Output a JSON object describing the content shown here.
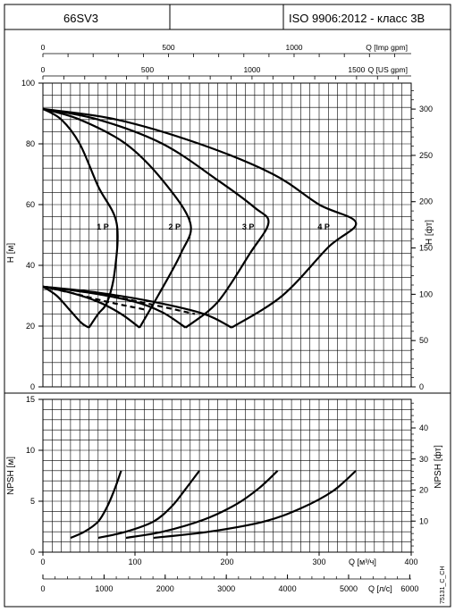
{
  "header": {
    "model": "66SV3",
    "blank": "",
    "standard": "ISO 9906:2012 - класс 3B"
  },
  "footer_code": "75131_C_CH",
  "chart_data": [
    {
      "type": "line",
      "panel": "head",
      "ylabel_left": "H [м]",
      "ylabel_right": "H [фт]",
      "ylim": [
        0,
        100
      ],
      "yticks_left": [
        "0",
        "20",
        "40",
        "60",
        "80",
        "100"
      ],
      "yticks_right": [
        "0",
        "50",
        "100",
        "150",
        "200",
        "250",
        "300"
      ],
      "top_axes": [
        {
          "label": "Q [Imp gpm]",
          "ticks": [
            "0",
            "500",
            "1000"
          ]
        },
        {
          "label": "Q [US gpm]",
          "ticks": [
            "0",
            "500",
            "1000",
            "1500"
          ]
        }
      ],
      "stage_labels": [
        "1 P",
        "2 P",
        "3 P",
        "4 P"
      ],
      "series": [
        {
          "name": "1 P",
          "style": "solid",
          "points": [
            [
              0,
              91.5
            ],
            [
              20,
              88
            ],
            [
              40,
              80
            ],
            [
              60,
              66
            ],
            [
              80,
              54
            ],
            [
              78,
              38
            ],
            [
              70,
              28
            ],
            [
              60,
              24
            ],
            [
              50,
              19.5
            ]
          ]
        },
        {
          "name": "2 P",
          "style": "solid",
          "points": [
            [
              0,
              91.5
            ],
            [
              40,
              88
            ],
            [
              90,
              80
            ],
            [
              130,
              68
            ],
            [
              160,
              54
            ],
            [
              150,
              44
            ],
            [
              125,
              30
            ],
            [
              105,
              19.5
            ]
          ]
        },
        {
          "name": "3 P",
          "style": "solid",
          "points": [
            [
              0,
              91.5
            ],
            [
              60,
              88
            ],
            [
              130,
              80
            ],
            [
              190,
              68
            ],
            [
              230,
              59
            ],
            [
              245,
              54
            ],
            [
              225,
              44
            ],
            [
              190,
              28
            ],
            [
              155,
              19.5
            ]
          ]
        },
        {
          "name": "4 P",
          "style": "solid",
          "points": [
            [
              0,
              91.5
            ],
            [
              80,
              88
            ],
            [
              170,
              80
            ],
            [
              250,
              70
            ],
            [
              300,
              60
            ],
            [
              340,
              54
            ],
            [
              310,
              46
            ],
            [
              260,
              30
            ],
            [
              205,
              19.5
            ]
          ]
        },
        {
          "name": "",
          "style": "solid",
          "points": [
            [
              0,
              33
            ],
            [
              15,
              30
            ],
            [
              30,
              25
            ],
            [
              42,
              21
            ],
            [
              50,
              19.5
            ]
          ]
        },
        {
          "name": "",
          "style": "solid",
          "points": [
            [
              0,
              33
            ],
            [
              30,
              31
            ],
            [
              60,
              28
            ],
            [
              85,
              24
            ],
            [
              105,
              19.5
            ]
          ]
        },
        {
          "name": "",
          "style": "solid",
          "points": [
            [
              0,
              33
            ],
            [
              50,
              31
            ],
            [
              100,
              28
            ],
            [
              130,
              24.5
            ],
            [
              155,
              19.5
            ]
          ]
        },
        {
          "name": "",
          "style": "solid",
          "points": [
            [
              0,
              33
            ],
            [
              60,
              31
            ],
            [
              120,
              28
            ],
            [
              175,
              24
            ],
            [
              205,
              19.5
            ]
          ]
        },
        {
          "name": "",
          "style": "dashed",
          "points": [
            [
              0,
              33
            ],
            [
              40,
              31.5
            ],
            [
              80,
              29.5
            ],
            [
              120,
              27
            ],
            [
              165,
              24
            ]
          ]
        },
        {
          "name": "",
          "style": "dashed",
          "points": [
            [
              0,
              33
            ],
            [
              30,
              31
            ],
            [
              70,
              28
            ],
            [
              110,
              25.5
            ]
          ]
        }
      ]
    },
    {
      "type": "line",
      "panel": "npsh",
      "ylabel_left": "NPSH [м]",
      "ylabel_right": "NPSH [фт]",
      "ylim": [
        0,
        15
      ],
      "yticks_left": [
        "0",
        "5",
        "10",
        "15"
      ],
      "yticks_right": [
        "10",
        "20",
        "30",
        "40"
      ],
      "bottom_axes": [
        {
          "label": "Q [м³/ч]",
          "ticks": [
            "0",
            "100",
            "200",
            "300",
            "400"
          ]
        },
        {
          "label": "Q [л/с]",
          "ticks": [
            "0",
            "1000",
            "2000",
            "3000",
            "4000",
            "5000",
            "6000"
          ]
        }
      ],
      "series": [
        {
          "name": "1 P",
          "points": [
            [
              30,
              1.4
            ],
            [
              45,
              2.0
            ],
            [
              60,
              3.0
            ],
            [
              70,
              4.5
            ],
            [
              78,
              6.2
            ],
            [
              85,
              8.0
            ]
          ]
        },
        {
          "name": "2 P",
          "points": [
            [
              60,
              1.4
            ],
            [
              90,
              2.0
            ],
            [
              120,
              3.0
            ],
            [
              140,
              4.5
            ],
            [
              155,
              6.2
            ],
            [
              170,
              8.0
            ]
          ]
        },
        {
          "name": "3 P",
          "points": [
            [
              90,
              1.4
            ],
            [
              130,
              2.0
            ],
            [
              175,
              3.2
            ],
            [
              210,
              4.7
            ],
            [
              235,
              6.3
            ],
            [
              255,
              8.0
            ]
          ]
        },
        {
          "name": "4 P",
          "points": [
            [
              120,
              1.4
            ],
            [
              180,
              2.0
            ],
            [
              240,
              3.0
            ],
            [
              280,
              4.3
            ],
            [
              315,
              6.0
            ],
            [
              340,
              8.0
            ]
          ]
        }
      ]
    }
  ]
}
